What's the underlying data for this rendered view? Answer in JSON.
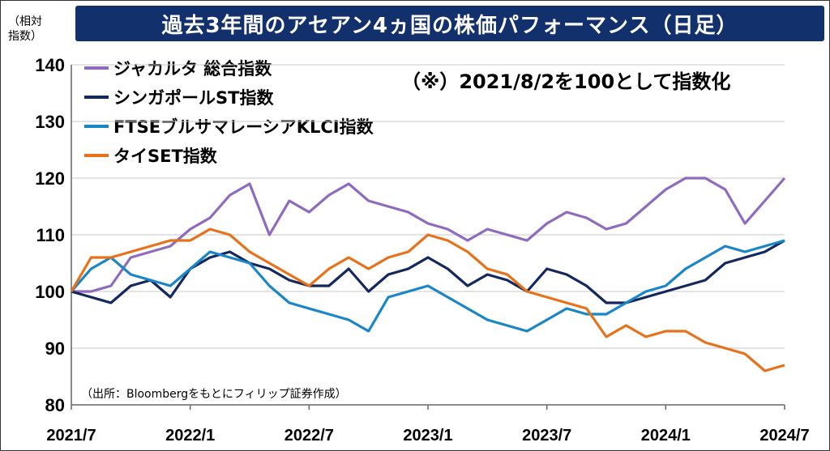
{
  "title": "過去3年間のアセアン4ヵ国の株価パフォーマンス（日足）",
  "unit_label_line1": "（相対",
  "unit_label_line2": "指数）",
  "note": "（※）2021/8/2を100として指数化",
  "source": "（出所：Bloombergをもとにフィリップ証券作成）",
  "chart_data": {
    "type": "line",
    "x": [
      "2021/7",
      "2021/8",
      "2021/9",
      "2021/10",
      "2021/11",
      "2021/12",
      "2022/1",
      "2022/2",
      "2022/3",
      "2022/4",
      "2022/5",
      "2022/6",
      "2022/7",
      "2022/8",
      "2022/9",
      "2022/10",
      "2022/11",
      "2022/12",
      "2023/1",
      "2023/2",
      "2023/3",
      "2023/4",
      "2023/5",
      "2023/6",
      "2023/7",
      "2023/8",
      "2023/9",
      "2023/10",
      "2023/11",
      "2023/12",
      "2024/1",
      "2024/2",
      "2024/3",
      "2024/4",
      "2024/5",
      "2024/6",
      "2024/7"
    ],
    "xticks": [
      "2021/7",
      "2022/1",
      "2022/7",
      "2023/1",
      "2023/7",
      "2024/1",
      "2024/7"
    ],
    "yticks": [
      80,
      90,
      100,
      110,
      120,
      130,
      140
    ],
    "ylim": [
      80,
      140
    ],
    "grid": true,
    "legend_position": "top-left",
    "series": [
      {
        "name": "ジャカルタ 総合指数",
        "color": "#8e6bbf",
        "values": [
          100,
          100,
          101,
          106,
          107,
          108,
          111,
          113,
          117,
          119,
          110,
          116,
          114,
          117,
          119,
          116,
          115,
          114,
          112,
          111,
          109,
          111,
          110,
          109,
          112,
          114,
          113,
          111,
          112,
          115,
          118,
          120,
          120,
          118,
          112,
          116,
          120
        ]
      },
      {
        "name": "シンガポールST指数",
        "color": "#14285e",
        "values": [
          100,
          99,
          98,
          101,
          102,
          99,
          104,
          106,
          107,
          105,
          104,
          102,
          101,
          101,
          104,
          100,
          103,
          104,
          106,
          104,
          101,
          103,
          102,
          100,
          104,
          103,
          101,
          98,
          98,
          99,
          100,
          101,
          102,
          105,
          106,
          107,
          109
        ]
      },
      {
        "name": "FTSEブルサマレーシアKLCI指数",
        "color": "#1a86c8",
        "values": [
          100,
          104,
          106,
          103,
          102,
          101,
          104,
          107,
          106,
          105,
          101,
          98,
          97,
          96,
          95,
          93,
          99,
          100,
          101,
          99,
          97,
          95,
          94,
          93,
          95,
          97,
          96,
          96,
          98,
          100,
          101,
          104,
          106,
          108,
          107,
          108,
          109
        ]
      },
      {
        "name": "タイSET指数",
        "color": "#e8721b",
        "values": [
          100,
          106,
          106,
          107,
          108,
          109,
          109,
          111,
          110,
          107,
          105,
          103,
          101,
          104,
          106,
          104,
          106,
          107,
          110,
          109,
          107,
          104,
          103,
          100,
          99,
          98,
          97,
          92,
          94,
          92,
          93,
          93,
          91,
          90,
          89,
          86,
          87
        ]
      }
    ]
  }
}
